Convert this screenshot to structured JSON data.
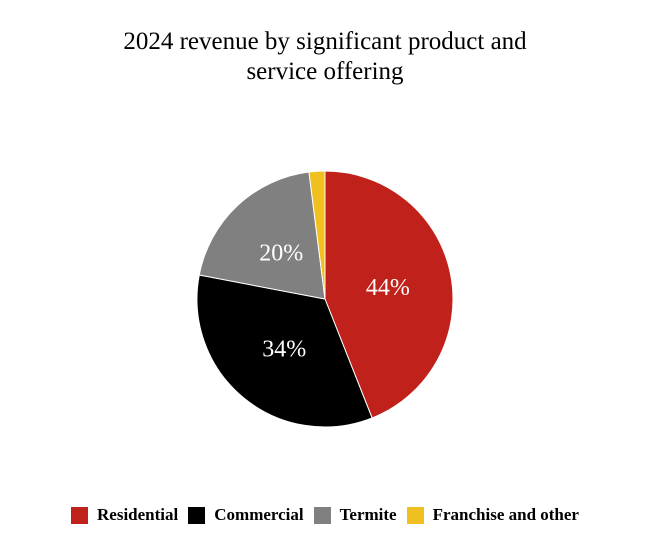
{
  "chart_data": {
    "type": "pie",
    "title": [
      "2024 revenue by significant product and",
      "service offering"
    ],
    "categories": [
      "Residential",
      "Commercial",
      "Termite",
      "Franchise and other"
    ],
    "values": [
      44,
      34,
      20,
      2
    ],
    "labels": [
      "44%",
      "34%",
      "20%",
      ""
    ],
    "colors": [
      "#C0211A",
      "#000000",
      "#808080",
      "#F0C020"
    ],
    "legend_position": "bottom",
    "start": "top, clockwise"
  }
}
